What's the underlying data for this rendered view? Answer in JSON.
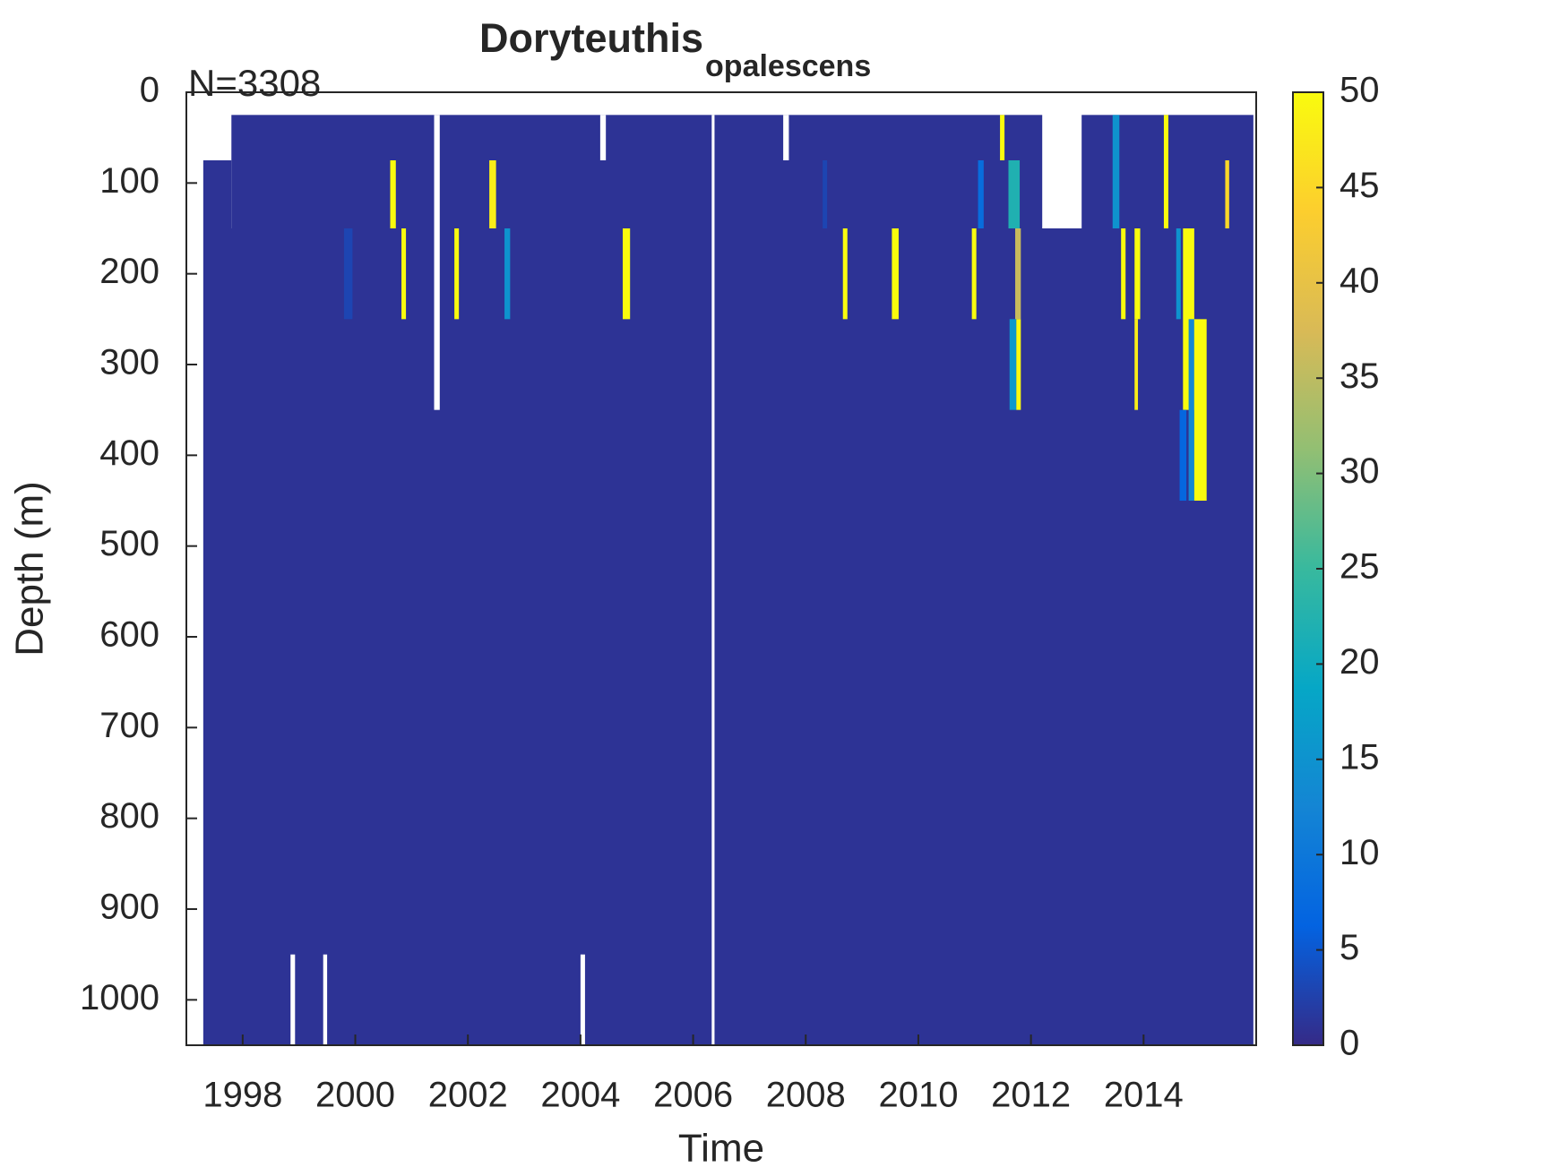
{
  "chart_data": {
    "type": "heatmap",
    "title": "Doryteuthis",
    "title_subscript": "opalescens",
    "annotation": "N=3308",
    "xlabel": "Time",
    "ylabel": "Depth (m)",
    "xlim": [
      1997,
      2016
    ],
    "xticks": [
      1998,
      2000,
      2002,
      2004,
      2006,
      2008,
      2010,
      2012,
      2014
    ],
    "ylim": [
      0,
      1050
    ],
    "y_reversed": true,
    "yticks": [
      0,
      100,
      200,
      300,
      400,
      500,
      600,
      700,
      800,
      900,
      1000
    ],
    "clim": [
      0,
      50
    ],
    "cticks": [
      0,
      5,
      10,
      15,
      20,
      25,
      30,
      35,
      40,
      45,
      50
    ],
    "colormap": "parula",
    "cells": [
      {
        "time": [
          1997.3,
          2015.95
        ],
        "depth": [
          150,
          1050
        ],
        "value": 1
      },
      {
        "time": [
          1997.8,
          2012.2
        ],
        "depth": [
          25,
          150
        ],
        "value": 1
      },
      {
        "time": [
          2012.9,
          2015.95
        ],
        "depth": [
          25,
          150
        ],
        "value": 1
      },
      {
        "time": [
          1997.3,
          1997.8
        ],
        "depth": [
          75,
          150
        ],
        "value": 1
      },
      {
        "time": [
          2006.33,
          2006.38
        ],
        "depth": [
          25,
          1050
        ],
        "value": null
      },
      {
        "time": [
          1999.43,
          1999.5
        ],
        "depth": [
          950,
          1050
        ],
        "value": null
      },
      {
        "time": [
          2004.0,
          2004.08
        ],
        "depth": [
          950,
          1050
        ],
        "value": null
      },
      {
        "time": [
          1998.85,
          1998.93
        ],
        "depth": [
          950,
          1050
        ],
        "value": null
      },
      {
        "time": [
          2001.4,
          2001.5
        ],
        "depth": [
          25,
          350
        ],
        "value": null
      },
      {
        "time": [
          2004.35,
          2004.45
        ],
        "depth": [
          25,
          75
        ],
        "value": null
      },
      {
        "time": [
          2007.6,
          2007.7
        ],
        "depth": [
          25,
          75
        ],
        "value": null
      },
      {
        "time": [
          2000.62,
          2000.72
        ],
        "depth": [
          75,
          150
        ],
        "value": 50
      },
      {
        "time": [
          2000.82,
          2000.9
        ],
        "depth": [
          150,
          250
        ],
        "value": 50
      },
      {
        "time": [
          2001.76,
          2001.84
        ],
        "depth": [
          150,
          250
        ],
        "value": 50
      },
      {
        "time": [
          2002.38,
          2002.5
        ],
        "depth": [
          75,
          150
        ],
        "value": 48
      },
      {
        "time": [
          2002.65,
          2002.75
        ],
        "depth": [
          150,
          250
        ],
        "value": 15
      },
      {
        "time": [
          2004.75,
          2004.88
        ],
        "depth": [
          150,
          250
        ],
        "value": 50
      },
      {
        "time": [
          2008.66,
          2008.74
        ],
        "depth": [
          150,
          250
        ],
        "value": 50
      },
      {
        "time": [
          2009.53,
          2009.65
        ],
        "depth": [
          150,
          250
        ],
        "value": 50
      },
      {
        "time": [
          2010.95,
          2011.03
        ],
        "depth": [
          150,
          250
        ],
        "value": 50
      },
      {
        "time": [
          2011.06,
          2011.16
        ],
        "depth": [
          75,
          150
        ],
        "value": 8
      },
      {
        "time": [
          2011.6,
          2011.8
        ],
        "depth": [
          75,
          150
        ],
        "value": 22
      },
      {
        "time": [
          2011.72,
          2011.82
        ],
        "depth": [
          150,
          250
        ],
        "value": 36
      },
      {
        "time": [
          2011.62,
          2011.74
        ],
        "depth": [
          250,
          350
        ],
        "value": 16
      },
      {
        "time": [
          2011.74,
          2011.82
        ],
        "depth": [
          250,
          350
        ],
        "value": 50
      },
      {
        "time": [
          2011.45,
          2011.53
        ],
        "depth": [
          25,
          75
        ],
        "value": 50
      },
      {
        "time": [
          2013.45,
          2013.57
        ],
        "depth": [
          25,
          150
        ],
        "value": 15
      },
      {
        "time": [
          2013.6,
          2013.68
        ],
        "depth": [
          150,
          250
        ],
        "value": 50
      },
      {
        "time": [
          2013.84,
          2013.94
        ],
        "depth": [
          150,
          250
        ],
        "value": 50
      },
      {
        "time": [
          2013.84,
          2013.9
        ],
        "depth": [
          250,
          350
        ],
        "value": 48
      },
      {
        "time": [
          2014.36,
          2014.44
        ],
        "depth": [
          25,
          150
        ],
        "value": 50
      },
      {
        "time": [
          2014.58,
          2014.66
        ],
        "depth": [
          150,
          250
        ],
        "value": 15
      },
      {
        "time": [
          2014.7,
          2014.9
        ],
        "depth": [
          150,
          350
        ],
        "value": 50
      },
      {
        "time": [
          2014.64,
          2014.76
        ],
        "depth": [
          350,
          450
        ],
        "value": 7
      },
      {
        "time": [
          2014.8,
          2014.9
        ],
        "depth": [
          250,
          450
        ],
        "value": 13
      },
      {
        "time": [
          2014.9,
          2015.12
        ],
        "depth": [
          250,
          450
        ],
        "value": 50
      },
      {
        "time": [
          2015.45,
          2015.52
        ],
        "depth": [
          75,
          150
        ],
        "value": 45
      },
      {
        "time": [
          1999.8,
          1999.95
        ],
        "depth": [
          150,
          250
        ],
        "value": 3
      },
      {
        "time": [
          2008.3,
          2008.38
        ],
        "depth": [
          75,
          150
        ],
        "value": 3
      }
    ]
  }
}
